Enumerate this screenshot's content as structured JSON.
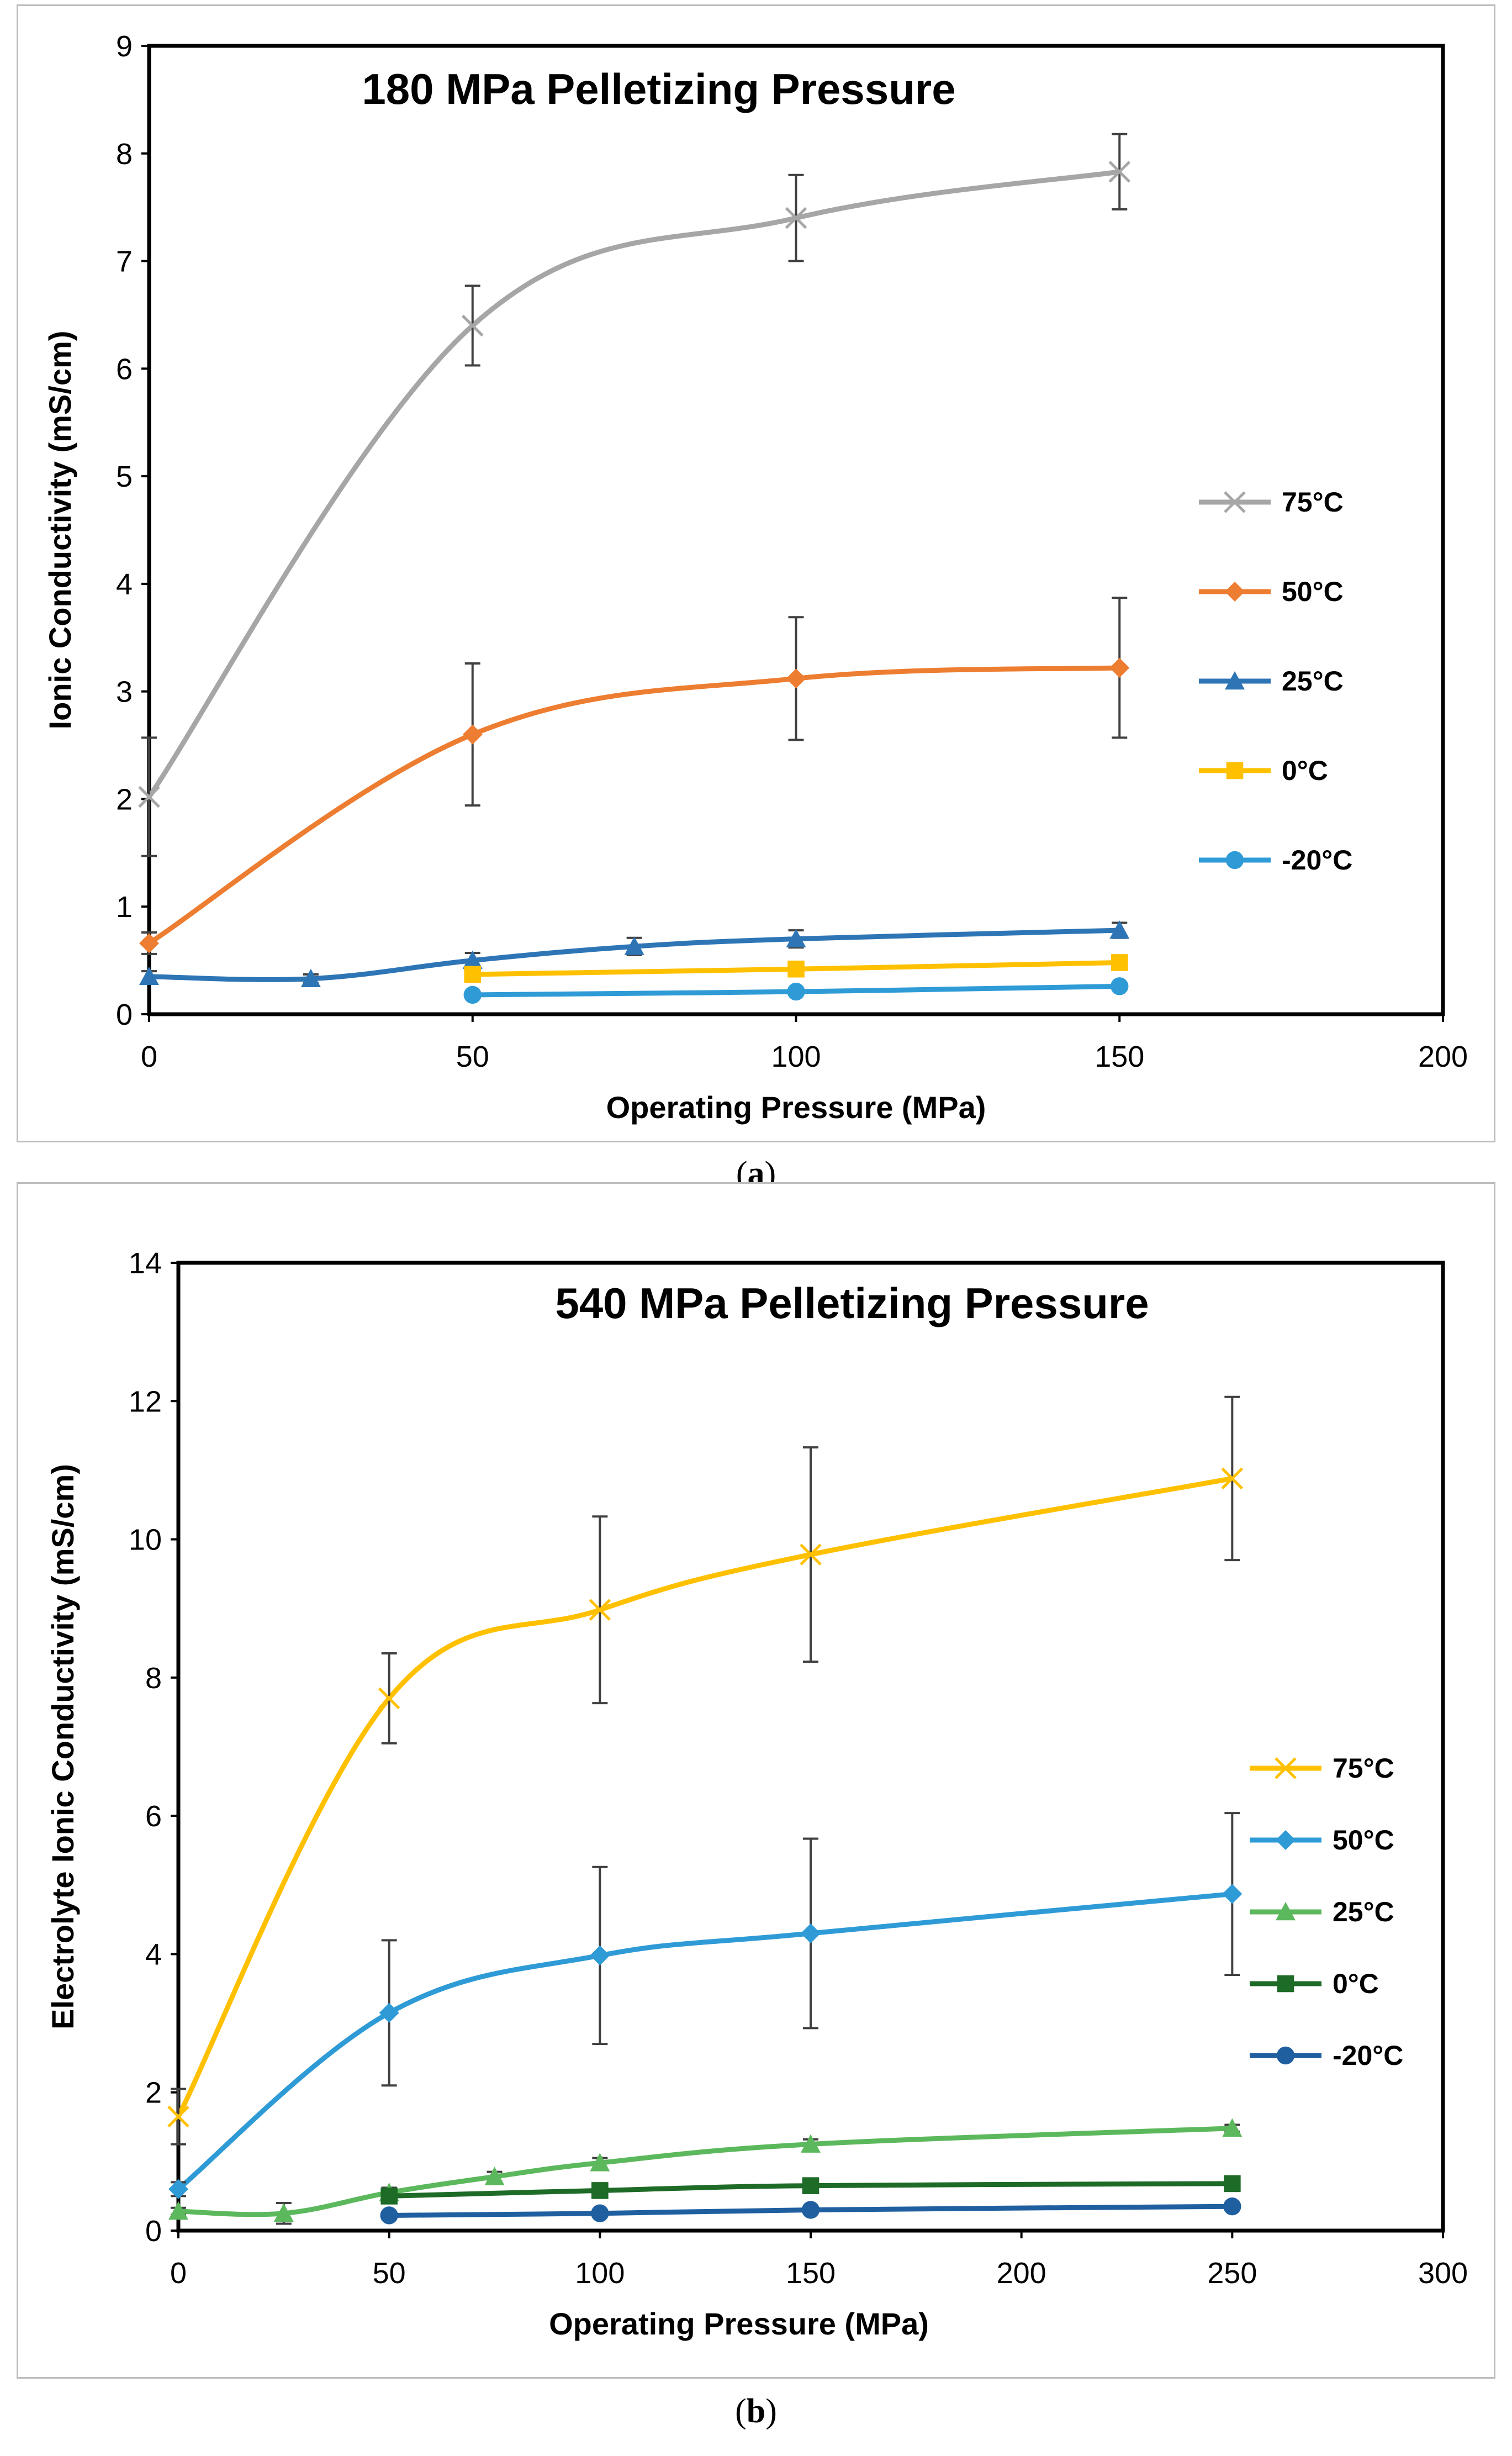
{
  "chart_data": [
    {
      "type": "line",
      "title": "180 MPa Pelletizing Pressure",
      "xlabel": "Operating Pressure (MPa)",
      "ylabel": "Ionic Conductivity (mS/cm)",
      "xlim": [
        0,
        200
      ],
      "ylim": [
        0,
        9
      ],
      "xticks": [
        0,
        50,
        100,
        150,
        200
      ],
      "yticks": [
        0,
        1,
        2,
        3,
        4,
        5,
        6,
        7,
        8,
        9
      ],
      "legend": "right",
      "series": [
        {
          "name": "75°C",
          "color": "#a6a6a6",
          "marker": "x",
          "x": [
            0,
            50,
            100,
            150
          ],
          "y": [
            2.02,
            6.4,
            7.4,
            7.83
          ],
          "err": [
            0.55,
            0.37,
            0.4,
            0.35
          ]
        },
        {
          "name": "50°C",
          "color": "#ed7d31",
          "marker": "diamond",
          "x": [
            0,
            50,
            100,
            150
          ],
          "y": [
            0.66,
            2.6,
            3.12,
            3.22
          ],
          "err": [
            0.1,
            0.66,
            0.57,
            0.65
          ]
        },
        {
          "name": "25°C",
          "color": "#2e75b6",
          "marker": "triangle",
          "x": [
            0,
            25,
            50,
            75,
            100,
            150
          ],
          "y": [
            0.35,
            0.33,
            0.5,
            0.63,
            0.7,
            0.78
          ],
          "err": [
            0.05,
            0.04,
            0.07,
            0.08,
            0.08,
            0.07
          ]
        },
        {
          "name": "0°C",
          "color": "#ffc000",
          "marker": "square",
          "x": [
            50,
            100,
            150
          ],
          "y": [
            0.37,
            0.42,
            0.48
          ],
          "err": [
            0.05,
            0.05,
            0.05
          ]
        },
        {
          "name": "-20°C",
          "color": "#2f9bd6",
          "marker": "circle",
          "x": [
            50,
            100,
            150
          ],
          "y": [
            0.18,
            0.21,
            0.26
          ],
          "err": [
            0.03,
            0.03,
            0.03
          ]
        }
      ]
    },
    {
      "type": "line",
      "title": "540 MPa Pelletizing Pressure",
      "xlabel": "Operating Pressure (MPa)",
      "ylabel": "Electrolyte Ionic Conductivity (mS/cm)",
      "xlim": [
        0,
        300
      ],
      "ylim": [
        0,
        14
      ],
      "xticks": [
        0,
        50,
        100,
        150,
        200,
        250,
        300
      ],
      "yticks": [
        0,
        2,
        4,
        6,
        8,
        10,
        12,
        14
      ],
      "legend": "right",
      "series": [
        {
          "name": "75°C",
          "color": "#ffc000",
          "marker": "x",
          "x": [
            0,
            50,
            100,
            150,
            250
          ],
          "y": [
            1.65,
            7.7,
            8.98,
            9.78,
            10.88
          ],
          "err": [
            0.4,
            0.65,
            1.35,
            1.55,
            1.18
          ]
        },
        {
          "name": "50°C",
          "color": "#2f9bd6",
          "marker": "diamond",
          "x": [
            0,
            50,
            100,
            150,
            250
          ],
          "y": [
            0.6,
            3.15,
            3.98,
            4.3,
            4.87
          ],
          "err": [
            0.1,
            1.05,
            1.28,
            1.37,
            1.17
          ]
        },
        {
          "name": "25°C",
          "color": "#5cb85c",
          "marker": "triangle",
          "x": [
            0,
            25,
            50,
            75,
            100,
            150,
            250
          ],
          "y": [
            0.28,
            0.25,
            0.55,
            0.78,
            0.98,
            1.25,
            1.48
          ],
          "err": [
            0.05,
            0.15,
            0.07,
            0.07,
            0.07,
            0.07,
            0.05
          ]
        },
        {
          "name": "0°C",
          "color": "#1e6b27",
          "marker": "square",
          "x": [
            50,
            100,
            150,
            250
          ],
          "y": [
            0.5,
            0.58,
            0.65,
            0.68
          ],
          "err": [
            0.05,
            0.05,
            0.05,
            0.05
          ]
        },
        {
          "name": "-20°C",
          "color": "#1f5fa0",
          "marker": "circle",
          "x": [
            50,
            100,
            150,
            250
          ],
          "y": [
            0.22,
            0.25,
            0.3,
            0.35
          ],
          "err": [
            0.03,
            0.03,
            0.03,
            0.03
          ]
        }
      ]
    }
  ],
  "captions": [
    "a",
    "b"
  ]
}
